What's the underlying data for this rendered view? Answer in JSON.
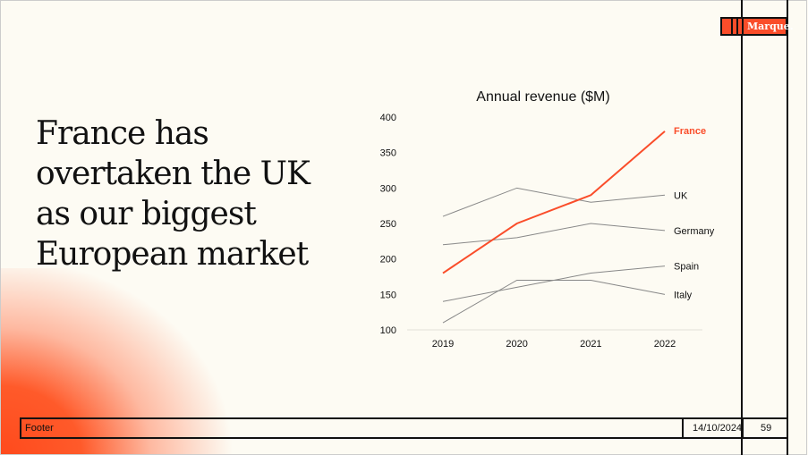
{
  "slide": {
    "headline": "France has overtaken the UK as our biggest European market",
    "logo": "Marque.",
    "footer": {
      "text": "Footer",
      "date": "14/10/2024",
      "page": "59"
    },
    "colors": {
      "accent": "#fa4d2a",
      "muted_line": "#888888",
      "background": "#fdfbf3"
    }
  },
  "chart_data": {
    "type": "line",
    "title": "Annual revenue ($M)",
    "x": [
      "2019",
      "2020",
      "2021",
      "2022"
    ],
    "ylim": [
      100,
      400
    ],
    "yticks": [
      100,
      150,
      200,
      250,
      300,
      350,
      400
    ],
    "grid": false,
    "legend": "direct labels at line ends",
    "series": [
      {
        "name": "France",
        "values": [
          180,
          250,
          290,
          380
        ],
        "color": "#fa4d2a",
        "highlight": true
      },
      {
        "name": "UK",
        "values": [
          260,
          300,
          280,
          290
        ],
        "color": "#888888"
      },
      {
        "name": "Germany",
        "values": [
          220,
          230,
          250,
          240
        ],
        "color": "#888888"
      },
      {
        "name": "Spain",
        "values": [
          140,
          160,
          180,
          190
        ],
        "color": "#888888"
      },
      {
        "name": "Italy",
        "values": [
          110,
          170,
          170,
          150
        ],
        "color": "#888888"
      }
    ]
  }
}
